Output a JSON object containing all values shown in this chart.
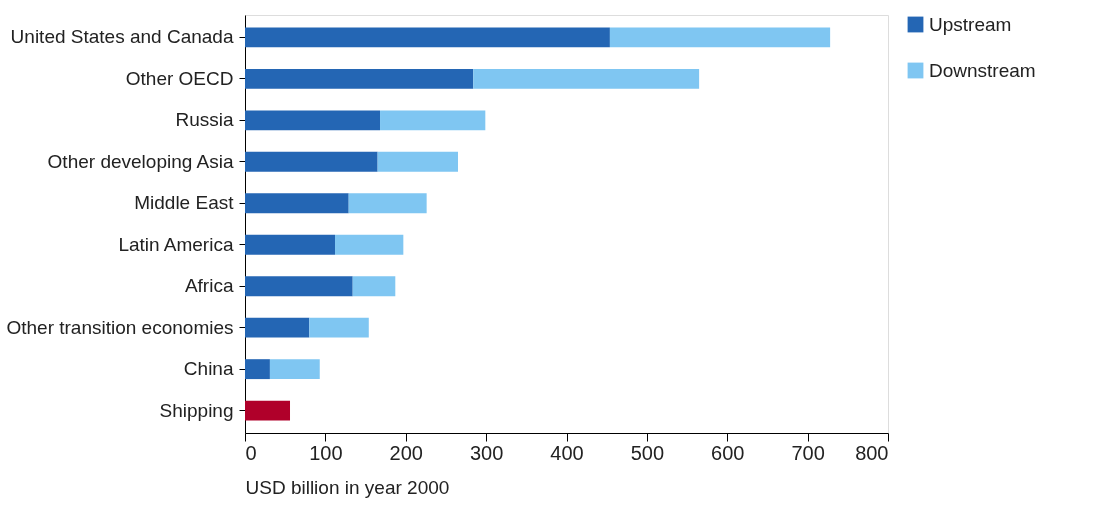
{
  "chart_data": {
    "type": "bar",
    "orientation": "horizontal",
    "stacked": true,
    "categories": [
      "United States and Canada",
      "Other OECD",
      "Russia",
      "Other developing Asia",
      "Middle East",
      "Latin America",
      "Africa",
      "Other transition economies",
      "China",
      "Shipping"
    ],
    "series": [
      {
        "name": "Upstream",
        "color": "#2466b4",
        "values": [
          454,
          284,
          168,
          165,
          129,
          112,
          134,
          80,
          31,
          null
        ]
      },
      {
        "name": "Downstream",
        "color": "#7fc6f2",
        "values": [
          274,
          281,
          131,
          100,
          97,
          85,
          53,
          74,
          62,
          null
        ]
      },
      {
        "color": "#b0002a",
        "values": [
          null,
          null,
          null,
          null,
          null,
          null,
          null,
          null,
          null,
          56
        ]
      }
    ],
    "xlabel": "USD billion in year 2000",
    "xlim": [
      0,
      800
    ],
    "xticks": [
      0,
      100,
      200,
      300,
      400,
      500,
      600,
      700,
      800
    ],
    "grid": false,
    "legend": "top right"
  }
}
